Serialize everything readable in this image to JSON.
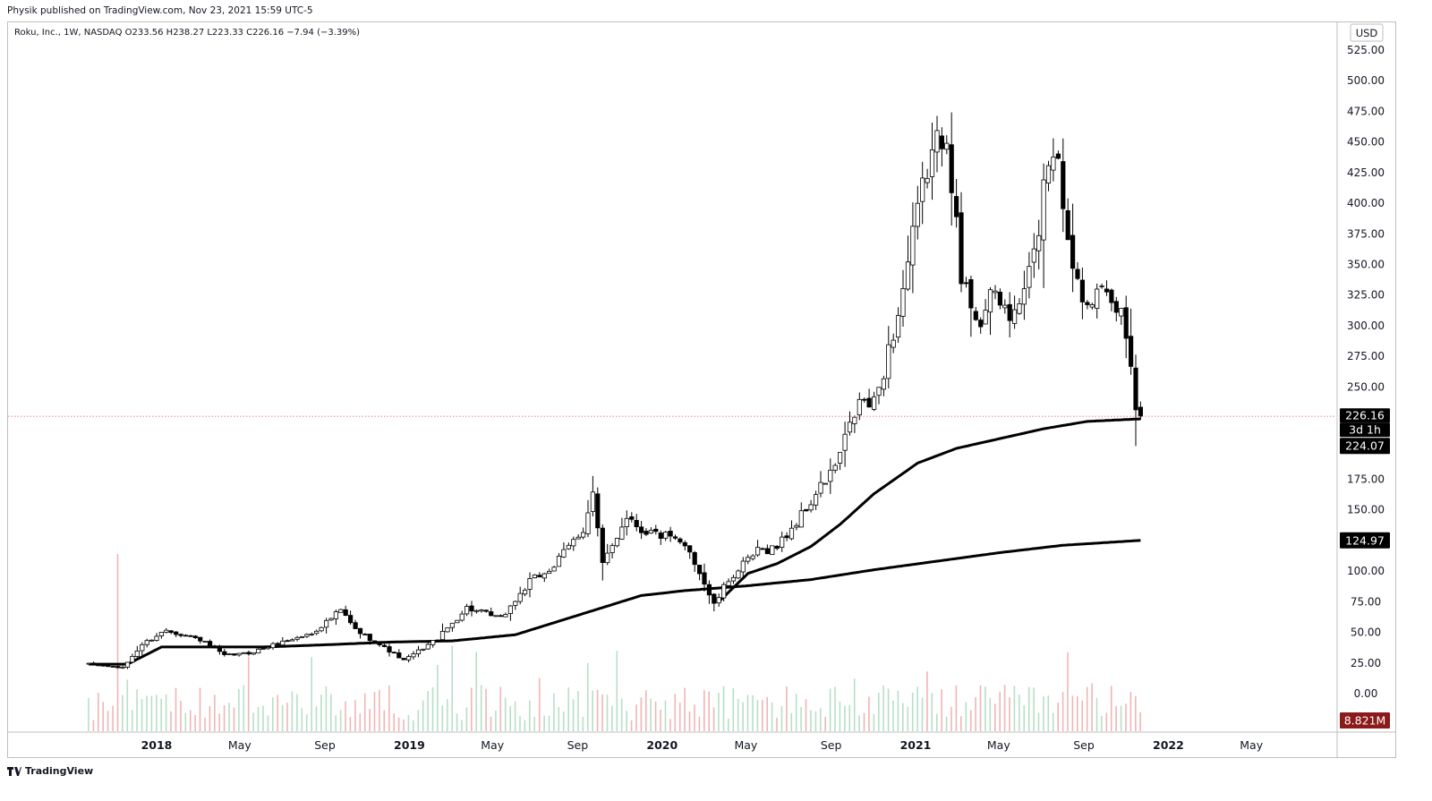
{
  "header": {
    "published": "Physik published on TradingView.com, Nov 23, 2021 15:59 UTC-5"
  },
  "footer": {
    "brand": "TradingView",
    "logo_icon": "tradingview-logo-icon"
  },
  "colors": {
    "up_candle_fill": "#ffffff",
    "down_candle_fill": "#000000",
    "volume_up": "#b7dfc7",
    "volume_down": "#f0b5b5",
    "ma_line": "#000000",
    "price_line": "#e65a65",
    "volume_badge": "#8b1a1a"
  },
  "chart_data": {
    "type": "candlestick",
    "symbol_line": "Roku, Inc., 1W, NASDAQ  O233.56  H238.27  L223.33  C226.16  −7.94 (−3.39%)",
    "currency": "USD",
    "ylim": [
      -15,
      535
    ],
    "y_ticks": [
      0,
      25,
      50,
      75,
      100,
      125,
      150,
      175,
      200,
      225,
      250,
      275,
      300,
      325,
      350,
      375,
      400,
      425,
      450,
      475,
      500,
      525
    ],
    "y_tick_labels": [
      "0.00",
      "25.00",
      "50.00",
      "75.00",
      "100.00",
      "",
      "150.00",
      "175.00",
      "",
      "",
      "250.00",
      "275.00",
      "300.00",
      "325.00",
      "350.00",
      "375.00",
      "400.00",
      "425.00",
      "450.00",
      "475.00",
      "500.00",
      "525.00"
    ],
    "x_labels": [
      "2018",
      "May",
      "Sep",
      "2019",
      "May",
      "Sep",
      "2020",
      "May",
      "Sep",
      "2021",
      "May",
      "Sep",
      "2022",
      "May"
    ],
    "x_label_dates": [
      "2018-01-01",
      "2018-05-01",
      "2018-09-01",
      "2019-01-01",
      "2019-05-01",
      "2019-09-01",
      "2020-01-01",
      "2020-05-01",
      "2020-09-01",
      "2021-01-01",
      "2021-05-01",
      "2021-09-01",
      "2022-01-01",
      "2022-05-01"
    ],
    "bold_x_labels": [
      "2018",
      "2019",
      "2020",
      "2021",
      "2022"
    ],
    "last_candle": {
      "date": "2021-11-22",
      "open": 233.56,
      "high": 238.27,
      "low": 223.33,
      "close": 226.16
    },
    "price_labels": {
      "last_price": "226.16",
      "countdown": "3d 1h",
      "ma_fast_value": "224.07",
      "ma_slow_value": "124.97",
      "volume": "8.821M"
    },
    "price_anchors": [
      [
        "2017-09-25",
        24
      ],
      [
        "2017-11-13",
        21
      ],
      [
        "2017-12-11",
        40
      ],
      [
        "2018-01-15",
        52
      ],
      [
        "2018-03-05",
        44
      ],
      [
        "2018-04-09",
        31
      ],
      [
        "2018-05-14",
        33
      ],
      [
        "2018-06-25",
        41
      ],
      [
        "2018-08-13",
        49
      ],
      [
        "2018-09-24",
        68
      ],
      [
        "2018-10-15",
        52
      ],
      [
        "2018-11-19",
        40
      ],
      [
        "2018-12-24",
        27
      ],
      [
        "2019-02-11",
        45
      ],
      [
        "2019-03-25",
        70
      ],
      [
        "2019-05-13",
        61
      ],
      [
        "2019-06-24",
        91
      ],
      [
        "2019-07-29",
        104
      ],
      [
        "2019-09-09",
        135
      ],
      [
        "2019-09-23",
        163
      ],
      [
        "2019-10-07",
        104
      ],
      [
        "2019-11-11",
        146
      ],
      [
        "2019-12-02",
        134
      ],
      [
        "2020-01-06",
        128
      ],
      [
        "2020-02-10",
        117
      ],
      [
        "2020-03-16",
        72
      ],
      [
        "2020-04-06",
        93
      ],
      [
        "2020-05-18",
        116
      ],
      [
        "2020-06-15",
        120
      ],
      [
        "2020-07-20",
        145
      ],
      [
        "2020-09-07",
        185
      ],
      [
        "2020-10-12",
        238
      ],
      [
        "2020-11-02",
        235
      ],
      [
        "2020-12-07",
        310
      ],
      [
        "2021-01-18",
        430
      ],
      [
        "2021-02-15",
        465
      ],
      [
        "2021-03-08",
        335
      ],
      [
        "2021-04-05",
        305
      ],
      [
        "2021-04-26",
        325
      ],
      [
        "2021-05-24",
        305
      ],
      [
        "2021-06-21",
        355
      ],
      [
        "2021-07-12",
        440
      ],
      [
        "2021-07-26",
        445
      ],
      [
        "2021-08-09",
        365
      ],
      [
        "2021-08-30",
        330
      ],
      [
        "2021-10-04",
        320
      ],
      [
        "2021-10-25",
        310
      ],
      [
        "2021-11-08",
        275
      ],
      [
        "2021-11-15",
        235
      ],
      [
        "2021-11-22",
        226.16
      ]
    ],
    "ma_fast": {
      "start_date": "2020-03-23",
      "points": [
        [
          "2020-03-23",
          75
        ],
        [
          "2020-05-04",
          98
        ],
        [
          "2020-06-15",
          106
        ],
        [
          "2020-08-03",
          120
        ],
        [
          "2020-09-14",
          138
        ],
        [
          "2020-11-02",
          163
        ],
        [
          "2021-01-04",
          188
        ],
        [
          "2021-03-01",
          200
        ],
        [
          "2021-05-03",
          208
        ],
        [
          "2021-07-05",
          216
        ],
        [
          "2021-09-06",
          222
        ],
        [
          "2021-11-22",
          224.07
        ]
      ]
    },
    "ma_slow": {
      "points": [
        [
          "2017-09-25",
          24
        ],
        [
          "2017-11-20",
          24
        ],
        [
          "2018-01-08",
          38
        ],
        [
          "2018-06-04",
          38
        ],
        [
          "2018-09-10",
          40
        ],
        [
          "2018-12-03",
          42
        ],
        [
          "2019-03-04",
          43
        ],
        [
          "2019-06-03",
          48
        ],
        [
          "2019-09-02",
          64
        ],
        [
          "2019-12-02",
          80
        ],
        [
          "2020-02-03",
          84
        ],
        [
          "2020-05-04",
          88
        ],
        [
          "2020-08-03",
          93
        ],
        [
          "2020-11-02",
          101
        ],
        [
          "2021-02-01",
          108
        ],
        [
          "2021-05-03",
          115
        ],
        [
          "2021-08-02",
          121
        ],
        [
          "2021-11-22",
          124.97
        ]
      ]
    }
  }
}
